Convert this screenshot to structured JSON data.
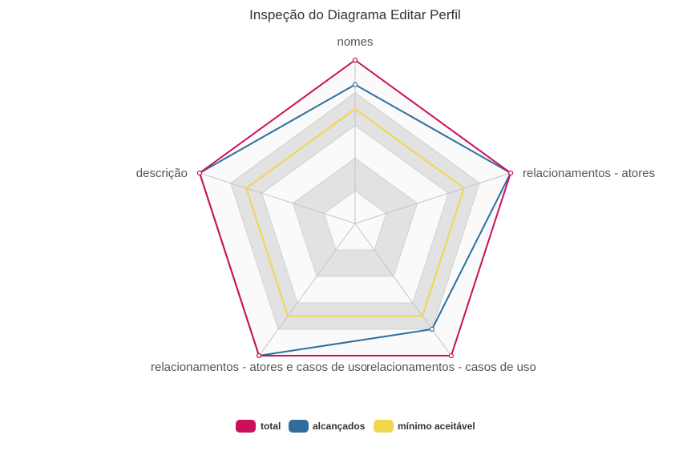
{
  "chart_data": {
    "type": "radar",
    "title": "Inspeção do Diagrama Editar Perfil",
    "axes": [
      "nomes",
      "relacionamentos - atores",
      "relacionamentos - casos de uso",
      "relacionamentos - atores e casos de uso",
      "descrição"
    ],
    "range": [
      0,
      1
    ],
    "series": [
      {
        "name": "total",
        "color": "#cc0e5b",
        "values": [
          1.0,
          1.0,
          1.0,
          1.0,
          1.0
        ]
      },
      {
        "name": "alcançados",
        "color": "#2f6e9c",
        "values": [
          0.85,
          1.0,
          0.8,
          1.0,
          1.0
        ]
      },
      {
        "name": "mínimo aceitável",
        "color": "#f2d64e",
        "values": [
          0.7,
          0.7,
          0.7,
          0.7,
          0.7
        ]
      }
    ],
    "legend_position": "bottom"
  }
}
